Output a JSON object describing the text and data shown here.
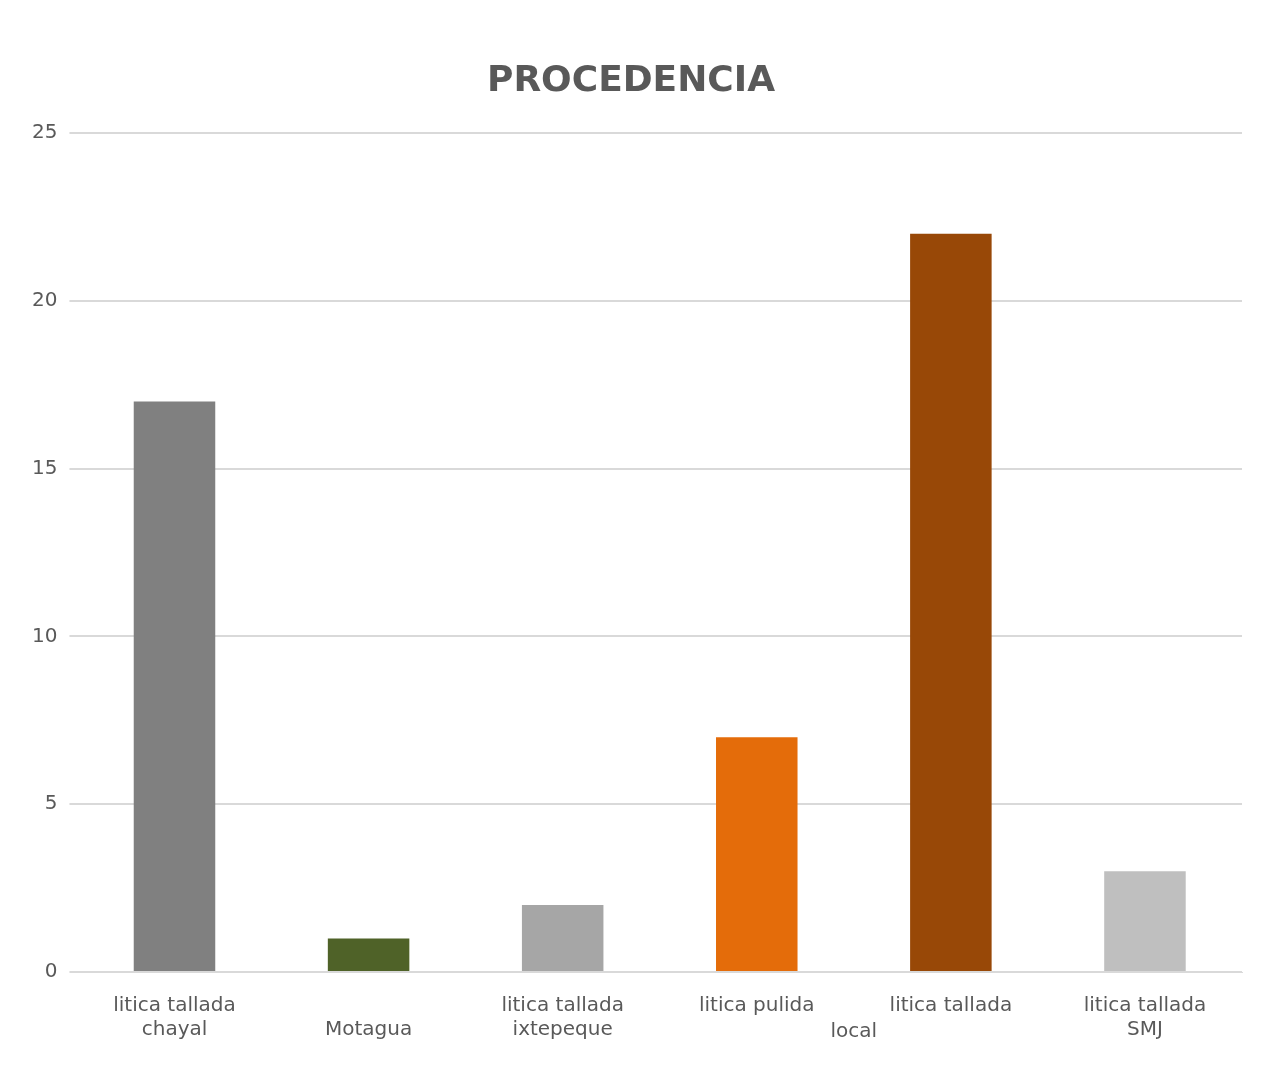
{
  "chart_data": {
    "type": "bar",
    "title": "PROCEDENCIA",
    "categories": [
      "litica tallada\nchayal",
      "\nMotagua",
      "litica tallada\nixtepeque",
      "litica pulida",
      "litica tallada",
      "litica tallada\nSMJ"
    ],
    "values": [
      17,
      1,
      2,
      7,
      22,
      3
    ],
    "colors": [
      "#808080",
      "#4f6228",
      "#a6a6a6",
      "#e46c0a",
      "#984807",
      "#bfbfbf"
    ],
    "ylim": [
      0,
      25
    ],
    "yticks": [
      0,
      5,
      10,
      15,
      20,
      25
    ],
    "grid": "y",
    "legend": false,
    "annotations": [
      "local"
    ]
  }
}
